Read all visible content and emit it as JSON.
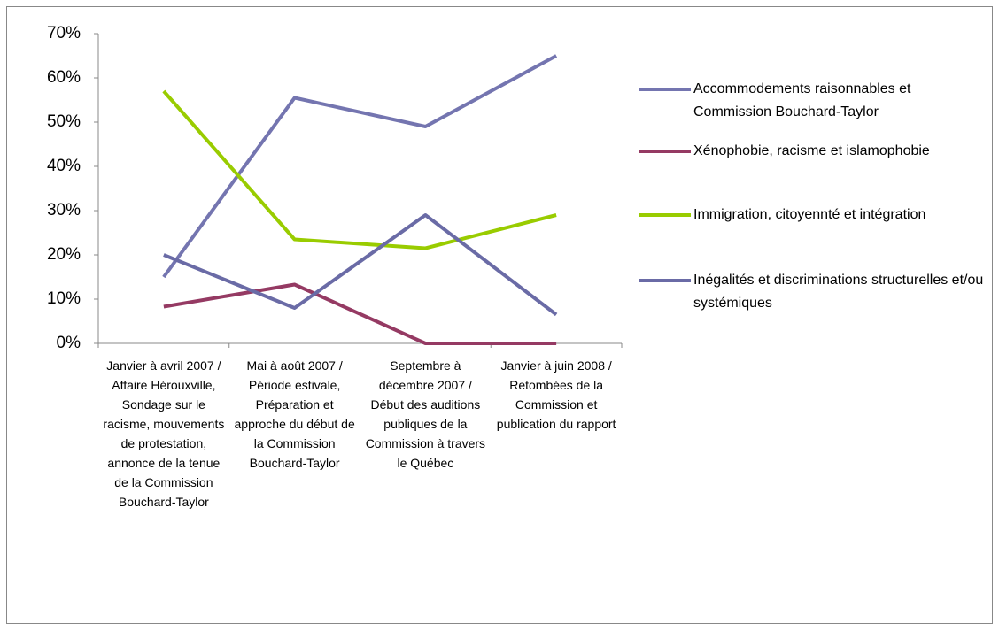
{
  "chart_data": {
    "type": "line",
    "categories": [
      "Janvier à avril 2007 / Affaire Hérouxville, Sondage sur le racisme, mouvements de protestation, annonce de la tenue de la Commission Bouchard-Taylor",
      "Mai à août 2007 / Période estivale, Préparation et approche du début de la Commission Bouchard-Taylor",
      "Septembre à décembre 2007 / Début des auditions publiques de la Commission à travers le Québec",
      "Janvier à juin 2008 / Retombées de la Commission et publication du rapport"
    ],
    "series": [
      {
        "name": "Accommodements raisonnables et Commission Bouchard-Taylor",
        "color": "#7475b0",
        "values": [
          15,
          55.5,
          49,
          65
        ]
      },
      {
        "name": "Xénophobie, racisme et islamophobie",
        "color": "#953a63",
        "values": [
          8.3,
          13.3,
          0,
          0
        ]
      },
      {
        "name": "Immigration, citoyennté et intégration",
        "color": "#99cc00",
        "values": [
          57,
          23.5,
          21.5,
          29
        ]
      },
      {
        "name": "Inégalités et discriminations structurelles et/ou systémiques",
        "color": "#6a6ba6",
        "values": [
          20,
          8,
          29,
          6.5
        ]
      }
    ],
    "ylim": [
      0,
      70
    ],
    "yticks": [
      {
        "value": 0,
        "label": "0%"
      },
      {
        "value": 10,
        "label": "10%"
      },
      {
        "value": 20,
        "label": "20%"
      },
      {
        "value": 30,
        "label": "30%"
      },
      {
        "value": 40,
        "label": "40%"
      },
      {
        "value": 50,
        "label": "50%"
      },
      {
        "value": 60,
        "label": "60%"
      },
      {
        "value": 70,
        "label": "70%"
      }
    ],
    "legend": "right"
  }
}
